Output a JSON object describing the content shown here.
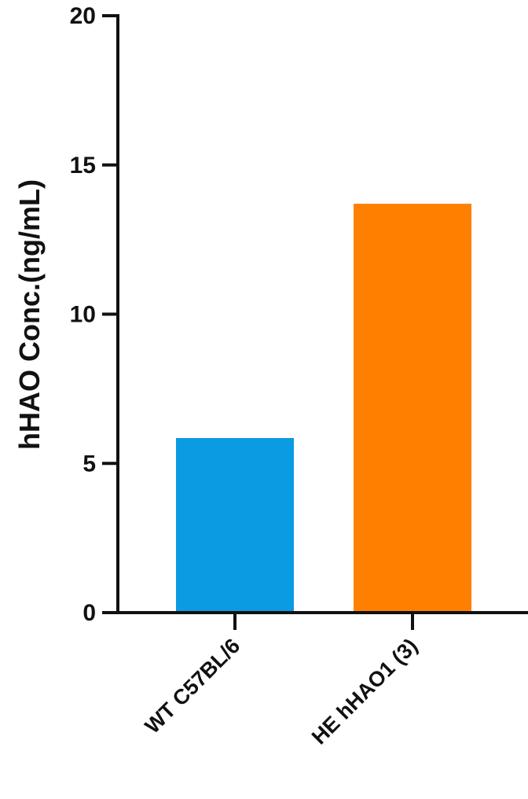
{
  "chart_data": {
    "type": "bar",
    "categories": [
      "WT C57BL/6",
      "HE hHAO1 (3)"
    ],
    "values": [
      5.85,
      13.7
    ],
    "colors": [
      "#0A9BE3",
      "#FF8000"
    ],
    "ylabel": "hHAO Conc.(ng/mL)",
    "xlabel": "",
    "ylim": [
      0,
      20
    ],
    "yticks": [
      0,
      5,
      10,
      15,
      20
    ],
    "grid": false,
    "legend": "none"
  }
}
